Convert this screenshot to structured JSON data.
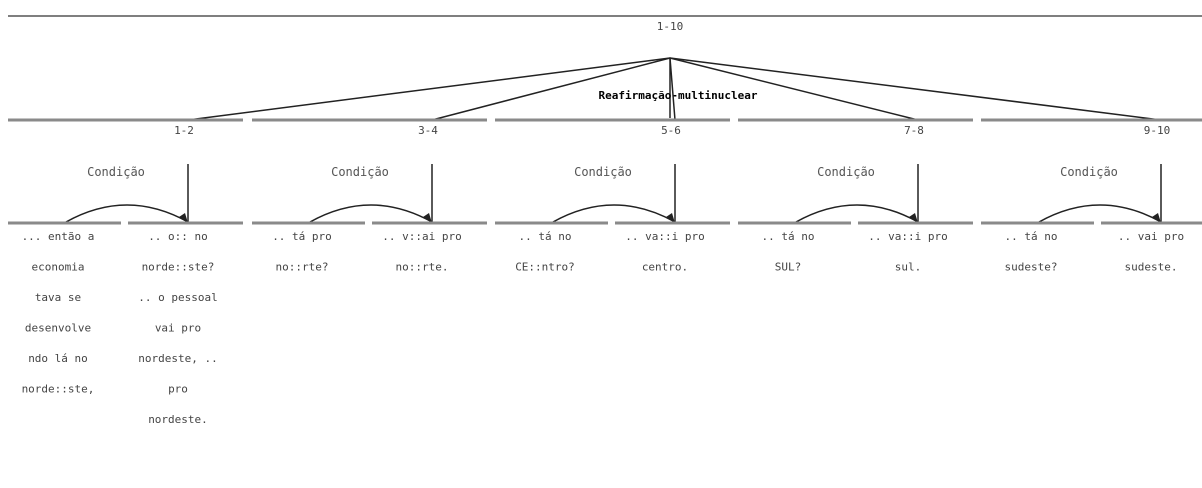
{
  "root": {
    "label": "1-10",
    "relation": "Reafirmação-multinuclear"
  },
  "groups": [
    {
      "label": "1-2",
      "relation": "Condição",
      "satellite": [
        "... então a",
        "economia",
        "tava se",
        "desenvolve",
        "ndo lá no",
        "norde::ste,"
      ],
      "nucleus": [
        ".. o:: no",
        "norde::ste?",
        ".. o pessoal",
        "vai pro",
        "nordeste, ..",
        "pro",
        "nordeste."
      ]
    },
    {
      "label": "3-4",
      "relation": "Condição",
      "satellite": [
        ".. tá pro",
        "no::rte?"
      ],
      "nucleus": [
        ".. v::ai pro",
        "no::rte."
      ]
    },
    {
      "label": "5-6",
      "relation": "Condição",
      "satellite": [
        ".. tá no",
        "CE::ntro?"
      ],
      "nucleus": [
        ".. va::i pro",
        "centro."
      ]
    },
    {
      "label": "7-8",
      "relation": "Condição",
      "satellite": [
        ".. tá no",
        "SUL?"
      ],
      "nucleus": [
        ".. va::i pro",
        "sul."
      ]
    },
    {
      "label": "9-10",
      "relation": "Condição",
      "satellite": [
        ".. tá no",
        "sudeste?"
      ],
      "nucleus": [
        ".. vai pro",
        "sudeste."
      ]
    }
  ]
}
